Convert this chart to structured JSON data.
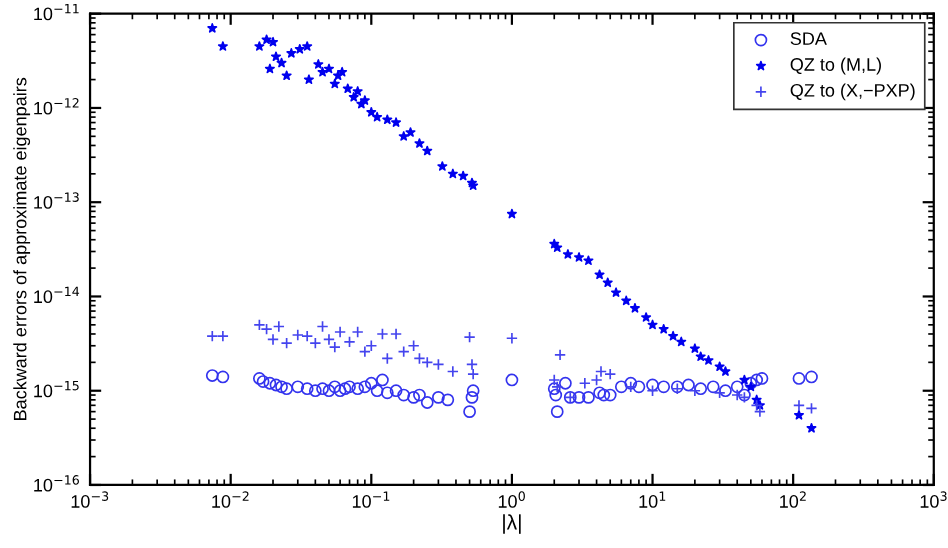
{
  "chart_data": {
    "type": "scatter",
    "xlabel": "|λ|",
    "ylabel": "Backward errors of approximate eigenpairs",
    "log": "xy",
    "grid": false,
    "legend": "top right",
    "xlim": [
      0.001,
      1000
    ],
    "ylim": [
      1e-16,
      1e-11
    ],
    "xticks": [
      {
        "value": 0.001,
        "label": "10$^{−3}$"
      },
      {
        "value": 0.01,
        "label": "10$^{−2}$"
      },
      {
        "value": 0.1,
        "label": "10$^{−1}$"
      },
      {
        "value": 1,
        "label": "10$^{0}$"
      },
      {
        "value": 10,
        "label": "10$^{1}$"
      },
      {
        "value": 100,
        "label": "10$^{2}$"
      },
      {
        "value": 1000,
        "label": "10$^{3}$"
      }
    ],
    "yticks": [
      {
        "value": 1e-16,
        "label": "10$^{−16}$"
      },
      {
        "value": 1e-15,
        "label": "10$^{−15}$"
      },
      {
        "value": 1e-14,
        "label": "10$^{−14}$"
      },
      {
        "value": 1e-13,
        "label": "10$^{−13}$"
      },
      {
        "value": 1e-12,
        "label": "10$^{−12}$"
      },
      {
        "value": 1e-11,
        "label": "10$^{−11}$"
      }
    ],
    "series": [
      {
        "name": "SDA",
        "color": "#3333ee",
        "marker": "circle",
        "x": [
          0.0074,
          0.0088,
          0.016,
          0.017,
          0.019,
          0.021,
          0.023,
          0.025,
          0.03,
          0.035,
          0.04,
          0.045,
          0.05,
          0.055,
          0.06,
          0.065,
          0.07,
          0.08,
          0.09,
          0.1,
          0.11,
          0.12,
          0.13,
          0.15,
          0.17,
          0.2,
          0.22,
          0.25,
          0.3,
          0.35,
          0.5,
          0.52,
          0.53,
          1.0,
          2.0,
          2.05,
          2.1,
          2.4,
          2.6,
          3,
          3.5,
          4.2,
          4.5,
          5,
          6,
          7,
          8,
          10,
          12,
          15,
          18,
          22,
          27,
          33,
          40,
          45,
          50,
          55,
          60,
          110,
          135
        ],
        "values": [
          1.45e-15,
          1.4e-15,
          1.35e-15,
          1.25e-15,
          1.2e-15,
          1.15e-15,
          1.1e-15,
          1.05e-15,
          1.1e-15,
          1.05e-15,
          1e-15,
          1.05e-15,
          1e-15,
          1.1e-15,
          1e-15,
          1.05e-15,
          1.1e-15,
          1.05e-15,
          1.1e-15,
          1.2e-15,
          1e-15,
          1.3e-15,
          9.5e-16,
          1e-15,
          9e-16,
          8.5e-16,
          9e-16,
          7.5e-16,
          8.5e-16,
          8e-16,
          6e-16,
          8.5e-16,
          1e-15,
          1.3e-15,
          1.05e-15,
          9e-16,
          6e-16,
          1.2e-15,
          8.5e-16,
          8.5e-16,
          8.5e-16,
          9.5e-16,
          9e-16,
          9e-16,
          1.1e-15,
          1.2e-15,
          1.1e-15,
          1.15e-15,
          1.1e-15,
          1.1e-15,
          1.15e-15,
          1.05e-15,
          1.1e-15,
          1e-15,
          1.1e-15,
          9e-16,
          1.2e-15,
          1.3e-15,
          1.35e-15,
          1.35e-15,
          1.4e-15
        ]
      },
      {
        "name": "QZ to (M,L)",
        "color": "#0000ee",
        "marker": "star",
        "x": [
          0.0074,
          0.0088,
          0.016,
          0.018,
          0.019,
          0.02,
          0.021,
          0.023,
          0.025,
          0.027,
          0.031,
          0.035,
          0.036,
          0.042,
          0.045,
          0.05,
          0.055,
          0.058,
          0.062,
          0.068,
          0.075,
          0.08,
          0.085,
          0.09,
          0.1,
          0.11,
          0.13,
          0.15,
          0.17,
          0.19,
          0.22,
          0.25,
          0.32,
          0.38,
          0.45,
          0.52,
          0.53,
          1.0,
          2.0,
          2.1,
          2.5,
          3.0,
          3.5,
          4.2,
          4.8,
          5.5,
          6.5,
          7.5,
          9.0,
          10,
          12,
          14,
          16,
          20,
          22,
          25,
          30,
          33,
          45,
          50,
          55,
          58,
          110,
          135
        ],
        "values": [
          7e-12,
          4.5e-12,
          4.5e-12,
          5.3e-12,
          2.6e-12,
          5e-12,
          3.5e-12,
          3e-12,
          2.2e-12,
          3.8e-12,
          4.2e-12,
          4.5e-12,
          2e-12,
          2.9e-12,
          2.4e-12,
          2.6e-12,
          1.8e-12,
          2.2e-12,
          2.4e-12,
          1.6e-12,
          1.3e-12,
          1.5e-12,
          1.1e-12,
          1.2e-12,
          9e-13,
          8e-13,
          7.5e-13,
          7e-13,
          5e-13,
          5.5e-13,
          4.2e-13,
          3.5e-13,
          2.4e-13,
          2e-13,
          1.9e-13,
          1.6e-13,
          1.5e-13,
          7.5e-14,
          3.6e-14,
          3.3e-14,
          2.8e-14,
          2.6e-14,
          2.4e-14,
          1.7e-14,
          1.4e-14,
          1.1e-14,
          9e-15,
          7.5e-15,
          6e-15,
          5e-15,
          4.5e-15,
          3.8e-15,
          3.3e-15,
          2.8e-15,
          2.3e-15,
          2.1e-15,
          1.8e-15,
          1.6e-15,
          1.3e-15,
          1.1e-15,
          8e-16,
          7e-16,
          5.5e-16,
          4e-16
        ]
      },
      {
        "name": "QZ to (X,−PXP)",
        "color": "#4444ee",
        "marker": "cross",
        "x": [
          0.0074,
          0.0088,
          0.016,
          0.018,
          0.02,
          0.022,
          0.025,
          0.03,
          0.035,
          0.04,
          0.045,
          0.05,
          0.055,
          0.06,
          0.07,
          0.08,
          0.09,
          0.1,
          0.12,
          0.13,
          0.15,
          0.17,
          0.2,
          0.22,
          0.25,
          0.3,
          0.38,
          0.5,
          0.52,
          0.53,
          1.0,
          2.0,
          2.1,
          2.2,
          2.6,
          3.3,
          4,
          4.3,
          5,
          7,
          10,
          15,
          20,
          30,
          40,
          45,
          55,
          58,
          110,
          135
        ],
        "values": [
          3.8e-15,
          3.8e-15,
          5e-15,
          4.5e-15,
          3.5e-15,
          4.8e-15,
          3.2e-15,
          3.9e-15,
          3.8e-15,
          3.2e-15,
          4.8e-15,
          3.5e-15,
          2.9e-15,
          4.2e-15,
          3.3e-15,
          4.2e-15,
          2.6e-15,
          3e-15,
          4e-15,
          2.2e-15,
          4e-15,
          2.6e-15,
          3e-15,
          2.2e-15,
          2e-15,
          1.9e-15,
          1.6e-15,
          3.7e-15,
          1.9e-15,
          1.5e-15,
          3.6e-15,
          1.3e-15,
          1.1e-15,
          2.4e-15,
          8.5e-16,
          1.2e-15,
          1.3e-15,
          1.6e-15,
          1.5e-15,
          1.1e-15,
          1e-15,
          1.05e-15,
          1e-15,
          9.5e-16,
          9e-16,
          8.5e-16,
          7e-16,
          6e-16,
          7e-16,
          6.5e-16
        ]
      }
    ]
  }
}
